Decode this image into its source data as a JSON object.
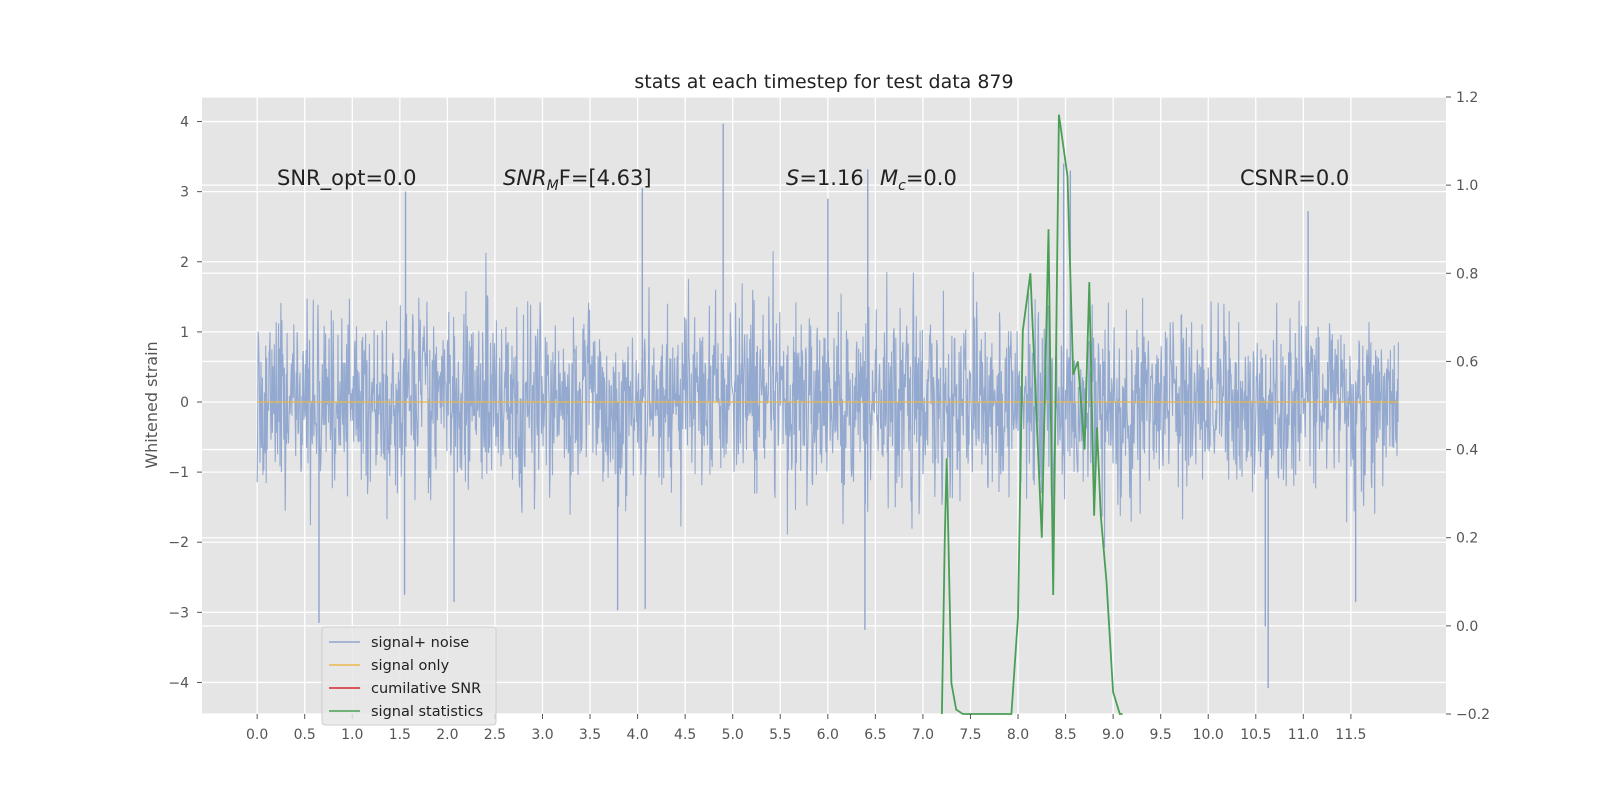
{
  "chart_data": {
    "type": "line",
    "title": "stats at each timestep for test data 879",
    "ylabel": "Whitened strain",
    "xlabel": "",
    "xlim": [
      -0.58,
      12.5
    ],
    "ylim": [
      -4.45,
      4.35
    ],
    "y2lim": [
      -0.2,
      1.2
    ],
    "grid": true,
    "legend_position": "lower-left",
    "xticks": [
      "0.0",
      "0.5",
      "1.0",
      "1.5",
      "2.0",
      "2.5",
      "3.0",
      "3.5",
      "4.0",
      "4.5",
      "5.0",
      "5.5",
      "6.0",
      "6.5",
      "7.0",
      "7.5",
      "8.0",
      "8.5",
      "9.0",
      "9.5",
      "10.0",
      "10.5",
      "11.0",
      "11.5"
    ],
    "yticks": [
      "4",
      "3",
      "2",
      "1",
      "0",
      "−1",
      "−2",
      "−3",
      "−4"
    ],
    "y2ticks": [
      "1.2",
      "1.0",
      "0.8",
      "0.6",
      "0.4",
      "0.2",
      "0.0",
      "−0.2"
    ],
    "annotations": {
      "snr_opt": "SNR_opt=0.0",
      "snr_mf_main": "SNR",
      "snr_mf_sub": "M",
      "snr_mf_rest": "F=[4.63]",
      "s_sym": "S",
      "s_val": "=1.16",
      "mc_sym": "M",
      "mc_sub": "c",
      "mc_val": "=0.0",
      "csnr": "CSNR=0.0"
    },
    "series": [
      {
        "name": "signal+ noise",
        "color": "#8fa5cd",
        "kind": "noise",
        "x_range": [
          0,
          12.0
        ],
        "envelope_abs": 2.0,
        "peaks": [
          [
            0.65,
            -3.15
          ],
          [
            1.56,
            3.0
          ],
          [
            1.55,
            -2.75
          ],
          [
            2.07,
            -2.85
          ],
          [
            3.79,
            -2.97
          ],
          [
            4.05,
            3.05
          ],
          [
            4.08,
            -2.95
          ],
          [
            4.9,
            3.97
          ],
          [
            6.0,
            2.9
          ],
          [
            6.39,
            -3.25
          ],
          [
            6.42,
            3.32
          ],
          [
            8.48,
            3.4
          ],
          [
            8.55,
            3.3
          ],
          [
            10.63,
            -4.08
          ],
          [
            10.6,
            -3.2
          ],
          [
            11.05,
            2.72
          ],
          [
            11.55,
            -2.85
          ]
        ]
      },
      {
        "name": "signal only",
        "color": "#e8b84e",
        "x": [
          0,
          12.0
        ],
        "y": [
          0,
          0
        ]
      },
      {
        "name": "cumilative SNR",
        "color": "#d62728",
        "x": [],
        "y": []
      },
      {
        "name": "signal statistics",
        "color": "#4a9e55",
        "axis": "y2",
        "x": [
          7.2,
          7.23,
          7.25,
          7.3,
          7.35,
          7.42,
          7.87,
          7.93,
          8.0,
          8.05,
          8.13,
          8.2,
          8.25,
          8.32,
          8.37,
          8.43,
          8.52,
          8.58,
          8.63,
          8.7,
          8.75,
          8.8,
          8.83,
          8.87,
          8.93,
          9.0,
          9.07,
          9.1
        ],
        "y": [
          -0.2,
          0.2,
          0.38,
          -0.13,
          -0.19,
          -0.24,
          -0.2,
          -0.21,
          0.02,
          0.67,
          0.8,
          0.45,
          0.2,
          0.9,
          0.07,
          1.16,
          1.02,
          0.57,
          0.6,
          0.4,
          0.78,
          0.25,
          0.45,
          0.25,
          0.1,
          -0.15,
          -0.2,
          -0.22
        ]
      }
    ]
  },
  "legend": {
    "items": [
      {
        "label": "signal+ noise",
        "color": "#8fa5cd"
      },
      {
        "label": "signal only",
        "color": "#e8b84e"
      },
      {
        "label": "cumilative SNR",
        "color": "#d62728"
      },
      {
        "label": "signal statistics",
        "color": "#4a9e55"
      }
    ]
  }
}
